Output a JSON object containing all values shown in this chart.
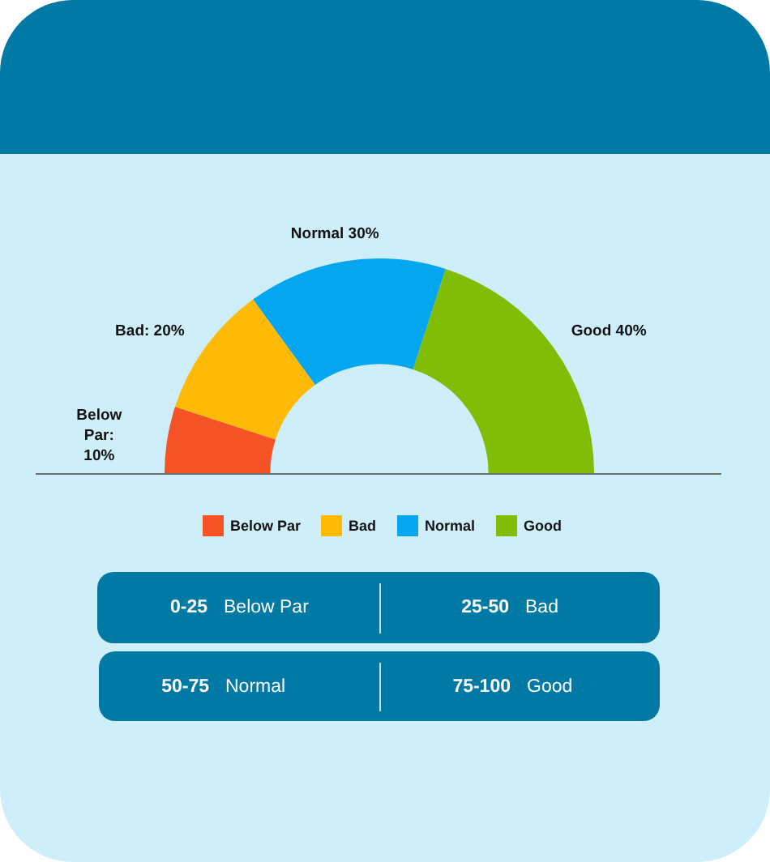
{
  "chart_data": {
    "type": "donut",
    "categories": [
      "Below Par",
      "Bad",
      "Normal",
      "Good"
    ],
    "values": [
      10,
      20,
      30,
      40
    ],
    "colors": [
      "#f35325",
      "#ffba08",
      "#05a6f0",
      "#81bc06"
    ],
    "value_labels": [
      "Below Par: 10%",
      "Bad: 20%",
      "Normal 30%",
      "Good 40%"
    ],
    "legend": "bottom",
    "annotations": [
      "0-25",
      "Below Par",
      "25-50",
      "Bad",
      "50-75",
      "Normal",
      "75-100",
      "Good"
    ]
  }
}
